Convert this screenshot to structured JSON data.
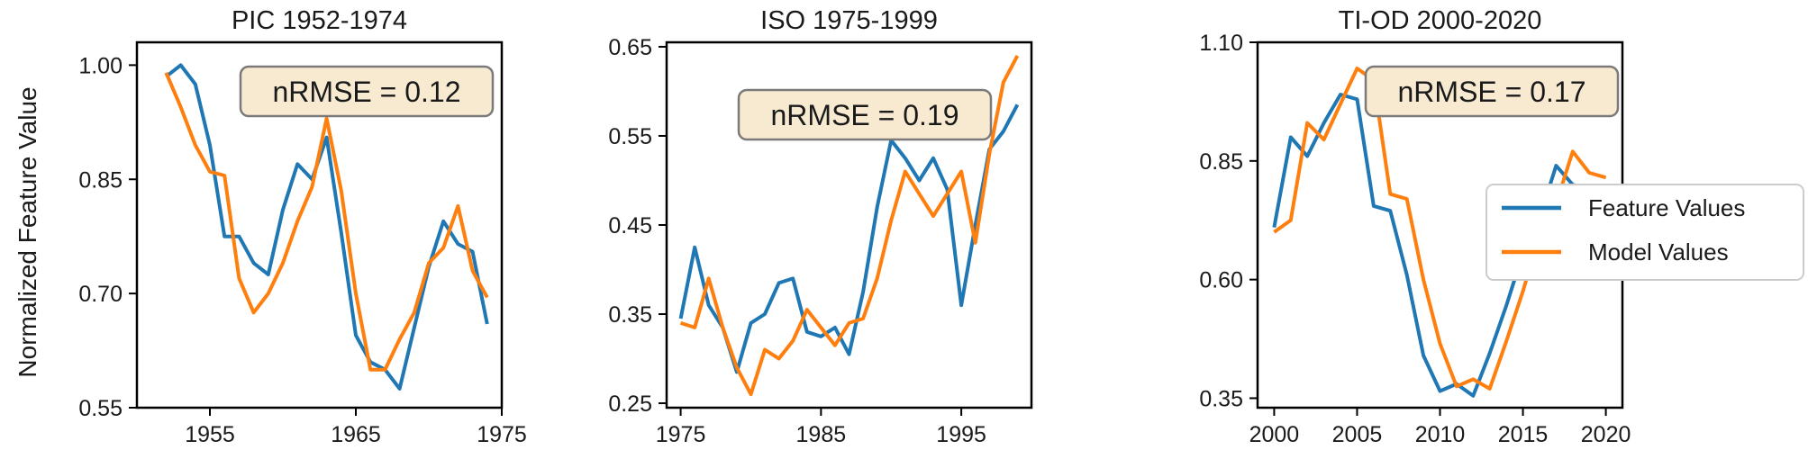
{
  "figure": {
    "ylabel": "Normalized Feature Value",
    "legend_position": "right"
  },
  "legend": {
    "entries": [
      {
        "name": "Feature Values",
        "color": "#1f77b4"
      },
      {
        "name": "Model Values",
        "color": "#ff7f0e"
      }
    ]
  },
  "chart_data": [
    {
      "type": "line",
      "title": "PIC 1952-1974",
      "badge": "nRMSE = 0.12",
      "badge_position": "top-right",
      "xlim": [
        1950,
        1975
      ],
      "ylim": [
        0.55,
        1.03
      ],
      "xticks": [
        1955,
        1965,
        1975
      ],
      "xtick_labels": [
        "1955",
        "1965",
        "1975"
      ],
      "yticks": [
        0.55,
        0.7,
        0.85,
        1.0
      ],
      "ytick_labels": [
        "0.55",
        "0.70",
        "0.85",
        "1.00"
      ],
      "x": [
        1952,
        1953,
        1954,
        1955,
        1956,
        1957,
        1958,
        1959,
        1960,
        1961,
        1962,
        1963,
        1964,
        1965,
        1966,
        1967,
        1968,
        1969,
        1970,
        1971,
        1972,
        1973,
        1974
      ],
      "series": [
        {
          "name": "Feature Values",
          "color": "#1f77b4",
          "values": [
            0.985,
            1.0,
            0.975,
            0.895,
            0.775,
            0.775,
            0.74,
            0.725,
            0.81,
            0.87,
            0.85,
            0.905,
            0.78,
            0.645,
            0.61,
            0.6,
            0.575,
            0.655,
            0.735,
            0.795,
            0.765,
            0.755,
            0.66
          ]
        },
        {
          "name": "Model Values",
          "color": "#ff7f0e",
          "values": [
            0.99,
            0.945,
            0.895,
            0.86,
            0.855,
            0.72,
            0.675,
            0.7,
            0.74,
            0.795,
            0.84,
            0.93,
            0.835,
            0.7,
            0.6,
            0.6,
            0.64,
            0.675,
            0.74,
            0.76,
            0.815,
            0.73,
            0.695
          ]
        }
      ]
    },
    {
      "type": "line",
      "title": "ISO 1975-1999",
      "badge": "nRMSE = 0.19",
      "badge_position": "top-center",
      "xlim": [
        1974,
        2000
      ],
      "ylim": [
        0.245,
        0.655
      ],
      "xticks": [
        1975,
        1985,
        1995
      ],
      "xtick_labels": [
        "1975",
        "1985",
        "1995"
      ],
      "yticks": [
        0.25,
        0.35,
        0.45,
        0.55,
        0.65
      ],
      "ytick_labels": [
        "0.25",
        "0.35",
        "0.45",
        "0.55",
        "0.65"
      ],
      "x": [
        1975,
        1976,
        1977,
        1978,
        1979,
        1980,
        1981,
        1982,
        1983,
        1984,
        1985,
        1986,
        1987,
        1988,
        1989,
        1990,
        1991,
        1992,
        1993,
        1994,
        1995,
        1996,
        1997,
        1998,
        1999
      ],
      "series": [
        {
          "name": "Feature Values",
          "color": "#1f77b4",
          "values": [
            0.345,
            0.425,
            0.36,
            0.335,
            0.285,
            0.34,
            0.35,
            0.385,
            0.39,
            0.33,
            0.325,
            0.335,
            0.305,
            0.375,
            0.47,
            0.545,
            0.525,
            0.5,
            0.525,
            0.49,
            0.36,
            0.45,
            0.535,
            0.555,
            0.585
          ]
        },
        {
          "name": "Model Values",
          "color": "#ff7f0e",
          "values": [
            0.34,
            0.335,
            0.39,
            0.335,
            0.29,
            0.26,
            0.31,
            0.3,
            0.32,
            0.355,
            0.335,
            0.315,
            0.34,
            0.345,
            0.39,
            0.455,
            0.51,
            0.485,
            0.46,
            0.485,
            0.51,
            0.43,
            0.53,
            0.61,
            0.64
          ]
        }
      ]
    },
    {
      "type": "line",
      "title": "TI-OD 2000-2020",
      "badge": "nRMSE = 0.17",
      "badge_position": "top-right",
      "xlim": [
        1999,
        2021
      ],
      "ylim": [
        0.33,
        1.1
      ],
      "xticks": [
        2000,
        2005,
        2010,
        2015,
        2020
      ],
      "xtick_labels": [
        "2000",
        "2005",
        "2010",
        "2015",
        "2020"
      ],
      "yticks": [
        0.35,
        0.6,
        0.85,
        1.1
      ],
      "ytick_labels": [
        "0.35",
        "0.60",
        "0.85",
        "1.10"
      ],
      "x": [
        2000,
        2001,
        2002,
        2003,
        2004,
        2005,
        2006,
        2007,
        2008,
        2009,
        2010,
        2011,
        2012,
        2013,
        2014,
        2015,
        2016,
        2017,
        2018,
        2019,
        2020
      ],
      "series": [
        {
          "name": "Feature Values",
          "color": "#1f77b4",
          "values": [
            0.71,
            0.9,
            0.86,
            0.93,
            0.99,
            0.98,
            0.755,
            0.745,
            0.61,
            0.44,
            0.365,
            0.38,
            0.355,
            0.445,
            0.545,
            0.655,
            0.73,
            0.84,
            0.8,
            0.79,
            0.75
          ]
        },
        {
          "name": "Model Values",
          "color": "#ff7f0e",
          "values": [
            0.7,
            0.725,
            0.93,
            0.895,
            0.97,
            1.045,
            1.02,
            0.78,
            0.77,
            0.6,
            0.465,
            0.375,
            0.39,
            0.37,
            0.47,
            0.575,
            0.695,
            0.76,
            0.87,
            0.825,
            0.815
          ]
        }
      ]
    }
  ]
}
